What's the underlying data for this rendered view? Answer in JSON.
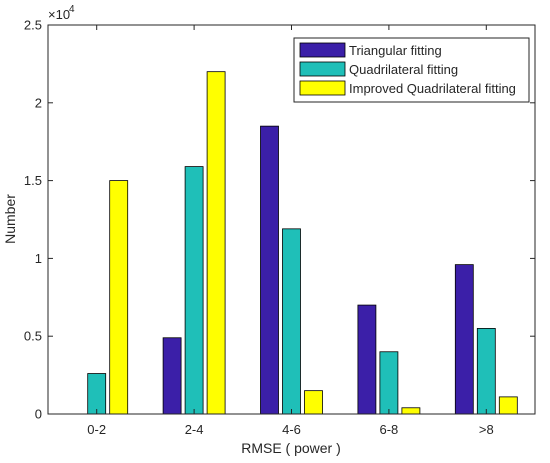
{
  "chart_data": {
    "type": "bar",
    "xlabel": "RMSE ( power )",
    "ylabel": "Number",
    "y_exponent_label": "×10",
    "y_exponent_power": "4",
    "ylim": [
      0,
      25000
    ],
    "yticks": [
      0,
      5000,
      10000,
      15000,
      20000,
      25000
    ],
    "ytick_labels": [
      "0",
      "0.5",
      "1",
      "1.5",
      "2",
      "2.5"
    ],
    "categories": [
      "0-2",
      "2-4",
      "4-6",
      "6-8",
      ">8"
    ],
    "series": [
      {
        "name": "Triangular fitting",
        "color": "#3b1fa8",
        "values": [
          0,
          4900,
          18500,
          7000,
          9600
        ]
      },
      {
        "name": "Quadrilateral fitting",
        "color": "#1fbfb8",
        "values": [
          2600,
          15900,
          11900,
          4000,
          5500
        ]
      },
      {
        "name": "Improved Quadrilateral fitting",
        "color": "#ffff00",
        "values": [
          15000,
          22000,
          1500,
          400,
          1100
        ]
      }
    ],
    "grid": false,
    "legend_position": "top-right"
  }
}
